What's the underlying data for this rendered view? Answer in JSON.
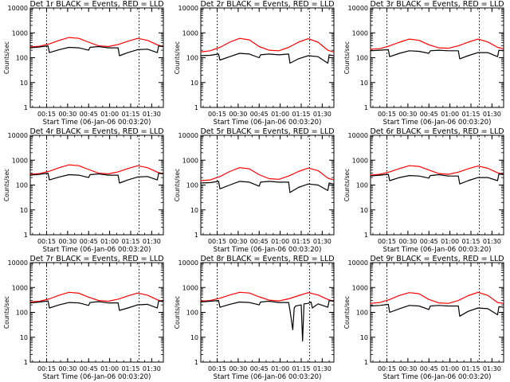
{
  "figure": {
    "background": "#ffffff",
    "events_color": "#000000",
    "lld_color": "#ff0000"
  },
  "chart_data": [
    {
      "type": "line",
      "title": "Det 1r BLACK = Events, RED = LLD",
      "xlabel": "Start Time (06-Jan-06 00:03:20)",
      "ylabel": "Counts/sec",
      "x_range": [
        "00:03:20",
        "01:38:20"
      ],
      "x_ticks": [
        "00:15",
        "00:30",
        "00:45",
        "01:00",
        "01:15",
        "01:30"
      ],
      "ylim": [
        1,
        10000
      ],
      "yscale": "log",
      "y_ticks": [
        "1",
        "10",
        "100",
        "1000",
        "10000"
      ],
      "vlines_dotted": [
        "00:15",
        "01:21"
      ],
      "series": [
        {
          "color": "red",
          "x": [
            "00:03",
            "00:10",
            "00:17",
            "00:24",
            "00:31",
            "00:38",
            "00:45",
            "00:52",
            "00:59",
            "01:06",
            "01:13",
            "01:20",
            "01:27",
            "01:34",
            "01:38"
          ],
          "y": [
            270,
            290,
            360,
            500,
            650,
            600,
            420,
            300,
            280,
            340,
            460,
            600,
            500,
            330,
            280
          ]
        },
        {
          "color": "black",
          "x": [
            "00:03",
            "00:10",
            "00:16",
            "00:17",
            "00:24",
            "00:31",
            "00:38",
            "00:45",
            "00:46",
            "00:52",
            "00:59",
            "01:06",
            "01:07",
            "01:13",
            "01:20",
            "01:27",
            "01:34",
            "01:35",
            "01:38"
          ],
          "y": [
            250,
            270,
            300,
            160,
            210,
            260,
            250,
            200,
            260,
            280,
            250,
            250,
            120,
            160,
            210,
            220,
            160,
            300,
            280
          ]
        }
      ]
    },
    {
      "type": "line",
      "title": "Det 2r BLACK = Events, RED = LLD",
      "xlabel": "Start Time (06-Jan-06 00:03:20)",
      "ylabel": "Counts/sec",
      "x_range": [
        "00:03:20",
        "01:38:20"
      ],
      "x_ticks": [
        "00:15",
        "00:30",
        "00:45",
        "01:00",
        "01:15",
        "01:30"
      ],
      "ylim": [
        1,
        10000
      ],
      "yscale": "log",
      "y_ticks": [
        "1",
        "10",
        "100",
        "1000",
        "10000"
      ],
      "vlines_dotted": [
        "00:15",
        "01:21"
      ],
      "series": [
        {
          "color": "red",
          "x": [
            "00:03",
            "00:10",
            "00:17",
            "00:24",
            "00:31",
            "00:38",
            "00:45",
            "00:52",
            "00:59",
            "01:06",
            "01:13",
            "01:20",
            "01:27",
            "01:34",
            "01:38"
          ],
          "y": [
            170,
            190,
            260,
            420,
            600,
            520,
            280,
            200,
            190,
            260,
            420,
            580,
            420,
            200,
            170
          ]
        },
        {
          "color": "black",
          "x": [
            "00:03",
            "00:10",
            "00:16",
            "00:17",
            "00:24",
            "00:31",
            "00:38",
            "00:45",
            "00:46",
            "00:52",
            "00:59",
            "01:06",
            "01:07",
            "01:13",
            "01:20",
            "01:27",
            "01:34",
            "01:35",
            "01:38"
          ],
          "y": [
            120,
            125,
            140,
            80,
            110,
            150,
            140,
            100,
            130,
            140,
            130,
            140,
            60,
            90,
            120,
            110,
            60,
            130,
            120
          ]
        }
      ]
    },
    {
      "type": "line",
      "title": "Det 3r BLACK = Events, RED = LLD",
      "xlabel": "Start Time (06-Jan-06 00:03:20)",
      "ylabel": "Counts/sec",
      "x_range": [
        "00:03:20",
        "01:38:20"
      ],
      "x_ticks": [
        "00:15",
        "00:30",
        "00:45",
        "01:00",
        "01:15",
        "01:30"
      ],
      "ylim": [
        1,
        10000
      ],
      "yscale": "log",
      "y_ticks": [
        "1",
        "10",
        "100",
        "1000",
        "10000"
      ],
      "vlines_dotted": [
        "00:15",
        "01:21"
      ],
      "series": [
        {
          "color": "red",
          "x": [
            "00:03",
            "00:10",
            "00:17",
            "00:24",
            "00:31",
            "00:38",
            "00:45",
            "00:52",
            "00:59",
            "01:06",
            "01:13",
            "01:20",
            "01:27",
            "01:34",
            "01:38"
          ],
          "y": [
            220,
            230,
            300,
            420,
            560,
            500,
            330,
            250,
            240,
            300,
            420,
            560,
            430,
            260,
            230
          ]
        },
        {
          "color": "black",
          "x": [
            "00:03",
            "00:10",
            "00:16",
            "00:17",
            "00:24",
            "00:31",
            "00:38",
            "00:45",
            "00:46",
            "00:52",
            "00:59",
            "01:06",
            "01:07",
            "01:13",
            "01:20",
            "01:27",
            "01:34",
            "01:35",
            "01:38"
          ],
          "y": [
            190,
            200,
            210,
            110,
            150,
            190,
            180,
            150,
            190,
            200,
            190,
            190,
            90,
            120,
            160,
            160,
            110,
            200,
            190
          ]
        }
      ]
    },
    {
      "type": "line",
      "title": "Det 4r BLACK = Events, RED = LLD",
      "xlabel": "Start Time (06-Jan-06 00:03:20)",
      "ylabel": "Counts/sec",
      "x_range": [
        "00:03:20",
        "01:38:20"
      ],
      "x_ticks": [
        "00:15",
        "00:30",
        "00:45",
        "01:00",
        "01:15",
        "01:30"
      ],
      "ylim": [
        1,
        10000
      ],
      "yscale": "log",
      "y_ticks": [
        "1",
        "10",
        "100",
        "1000",
        "10000"
      ],
      "vlines_dotted": [
        "00:15",
        "01:21"
      ],
      "series": [
        {
          "color": "red",
          "x": [
            "00:03",
            "00:10",
            "00:17",
            "00:24",
            "00:31",
            "00:38",
            "00:45",
            "00:52",
            "00:59",
            "01:06",
            "01:13",
            "01:20",
            "01:27",
            "01:34",
            "01:38"
          ],
          "y": [
            270,
            290,
            360,
            500,
            650,
            600,
            420,
            300,
            280,
            340,
            460,
            600,
            500,
            330,
            280
          ]
        },
        {
          "color": "black",
          "x": [
            "00:03",
            "00:10",
            "00:16",
            "00:17",
            "00:24",
            "00:31",
            "00:38",
            "00:45",
            "00:46",
            "00:52",
            "00:59",
            "01:06",
            "01:07",
            "01:13",
            "01:20",
            "01:27",
            "01:34",
            "01:35",
            "01:38"
          ],
          "y": [
            250,
            270,
            300,
            160,
            210,
            260,
            250,
            200,
            260,
            280,
            250,
            250,
            120,
            160,
            210,
            220,
            160,
            300,
            280
          ]
        }
      ]
    },
    {
      "type": "line",
      "title": "Det 5r BLACK = Events, RED = LLD",
      "xlabel": "Start Time (06-Jan-06 00:03:20)",
      "ylabel": "Counts/sec",
      "x_range": [
        "00:03:20",
        "01:38:20"
      ],
      "x_ticks": [
        "00:15",
        "00:30",
        "00:45",
        "01:00",
        "01:15",
        "01:30"
      ],
      "ylim": [
        1,
        10000
      ],
      "yscale": "log",
      "y_ticks": [
        "1",
        "10",
        "100",
        "1000",
        "10000"
      ],
      "vlines_dotted": [
        "00:15",
        "01:21"
      ],
      "series": [
        {
          "color": "red",
          "x": [
            "00:03",
            "00:10",
            "00:17",
            "00:24",
            "00:31",
            "00:38",
            "00:45",
            "00:52",
            "00:59",
            "01:06",
            "01:13",
            "01:20",
            "01:27",
            "01:34",
            "01:38"
          ],
          "y": [
            150,
            160,
            220,
            350,
            500,
            450,
            260,
            180,
            170,
            230,
            350,
            480,
            380,
            190,
            160
          ]
        },
        {
          "color": "black",
          "x": [
            "00:03",
            "00:10",
            "00:16",
            "00:17",
            "00:24",
            "00:31",
            "00:38",
            "00:45",
            "00:46",
            "00:52",
            "00:59",
            "01:06",
            "01:07",
            "01:13",
            "01:20",
            "01:27",
            "01:34",
            "01:35",
            "01:38"
          ],
          "y": [
            120,
            125,
            140,
            70,
            100,
            140,
            130,
            90,
            130,
            140,
            130,
            130,
            50,
            80,
            110,
            100,
            60,
            120,
            110
          ]
        }
      ]
    },
    {
      "type": "line",
      "title": "Det 6r BLACK = Events, RED = LLD",
      "xlabel": "Start Time (06-Jan-06 00:03:20)",
      "ylabel": "Counts/sec",
      "x_range": [
        "00:03:20",
        "01:38:20"
      ],
      "x_ticks": [
        "00:15",
        "00:30",
        "00:45",
        "01:00",
        "01:15",
        "01:30"
      ],
      "ylim": [
        1,
        10000
      ],
      "yscale": "log",
      "y_ticks": [
        "1",
        "10",
        "100",
        "1000",
        "10000"
      ],
      "vlines_dotted": [
        "00:15",
        "01:21"
      ],
      "series": [
        {
          "color": "red",
          "x": [
            "00:03",
            "00:10",
            "00:17",
            "00:24",
            "00:31",
            "00:38",
            "00:45",
            "00:52",
            "00:59",
            "01:06",
            "01:13",
            "01:20",
            "01:27",
            "01:34",
            "01:38"
          ],
          "y": [
            250,
            270,
            340,
            460,
            600,
            560,
            400,
            290,
            270,
            330,
            450,
            580,
            470,
            310,
            270
          ]
        },
        {
          "color": "black",
          "x": [
            "00:03",
            "00:10",
            "00:16",
            "00:17",
            "00:24",
            "00:31",
            "00:38",
            "00:45",
            "00:46",
            "00:52",
            "00:59",
            "01:06",
            "01:07",
            "01:13",
            "01:20",
            "01:27",
            "01:34",
            "01:35",
            "01:38"
          ],
          "y": [
            230,
            250,
            270,
            150,
            200,
            240,
            230,
            190,
            240,
            260,
            230,
            230,
            110,
            150,
            200,
            200,
            150,
            280,
            260
          ]
        }
      ]
    },
    {
      "type": "line",
      "title": "Det 7r BLACK = Events, RED = LLD",
      "xlabel": "Start Time (06-Jan-06 00:03:20)",
      "ylabel": "Counts/sec",
      "x_range": [
        "00:03:20",
        "01:38:20"
      ],
      "x_ticks": [
        "00:15",
        "00:30",
        "00:45",
        "01:00",
        "01:15",
        "01:30"
      ],
      "ylim": [
        1,
        10000
      ],
      "yscale": "log",
      "y_ticks": [
        "1",
        "10",
        "100",
        "1000",
        "10000"
      ],
      "vlines_dotted": [
        "00:15",
        "01:21"
      ],
      "series": [
        {
          "color": "red",
          "x": [
            "00:03",
            "00:10",
            "00:17",
            "00:24",
            "00:31",
            "00:38",
            "00:45",
            "00:52",
            "00:59",
            "01:06",
            "01:13",
            "01:20",
            "01:27",
            "01:34",
            "01:38"
          ],
          "y": [
            260,
            280,
            350,
            490,
            640,
            590,
            410,
            300,
            280,
            340,
            460,
            600,
            490,
            320,
            270
          ]
        },
        {
          "color": "black",
          "x": [
            "00:03",
            "00:10",
            "00:16",
            "00:17",
            "00:24",
            "00:31",
            "00:38",
            "00:45",
            "00:46",
            "00:52",
            "00:59",
            "01:06",
            "01:07",
            "01:13",
            "01:20",
            "01:27",
            "01:34",
            "01:35",
            "01:38"
          ],
          "y": [
            240,
            260,
            290,
            150,
            200,
            250,
            240,
            190,
            250,
            270,
            240,
            240,
            120,
            150,
            200,
            210,
            150,
            290,
            270
          ]
        }
      ]
    },
    {
      "type": "line",
      "title": "Det 8r BLACK = Events, RED = LLD",
      "xlabel": "Start Time (06-Jan-06 00:03:20)",
      "ylabel": "Counts/sec",
      "x_range": [
        "00:03:20",
        "01:38:20"
      ],
      "x_ticks": [
        "00:15",
        "00:30",
        "00:45",
        "01:00",
        "01:15",
        "01:30"
      ],
      "ylim": [
        1,
        10000
      ],
      "yscale": "log",
      "y_ticks": [
        "1",
        "10",
        "100",
        "1000",
        "10000"
      ],
      "vlines_dotted": [
        "00:15",
        "01:21"
      ],
      "series": [
        {
          "color": "red",
          "x": [
            "00:03",
            "00:10",
            "00:17",
            "00:24",
            "00:31",
            "00:38",
            "00:45",
            "00:52",
            "00:59",
            "01:06",
            "01:13",
            "01:20",
            "01:27",
            "01:34",
            "01:38"
          ],
          "y": [
            280,
            300,
            370,
            500,
            640,
            600,
            420,
            310,
            290,
            350,
            470,
            620,
            500,
            330,
            280
          ]
        },
        {
          "color": "black",
          "x": [
            "00:03",
            "00:10",
            "00:16",
            "00:17",
            "00:24",
            "00:31",
            "00:38",
            "00:45",
            "00:46",
            "00:52",
            "00:59",
            "01:06",
            "01:07",
            "01:09",
            "01:10",
            "01:11",
            "01:13",
            "01:15",
            "01:16",
            "01:17",
            "01:20",
            "01:22",
            "01:23",
            "01:27",
            "01:34",
            "01:35",
            "01:38"
          ],
          "y": [
            260,
            280,
            300,
            160,
            210,
            260,
            250,
            200,
            260,
            280,
            250,
            250,
            120,
            20,
            150,
            180,
            190,
            200,
            7,
            220,
            230,
            260,
            150,
            220,
            160,
            300,
            280
          ]
        }
      ]
    },
    {
      "type": "line",
      "title": "Det 9r BLACK = Events, RED = LLD",
      "xlabel": "Start Time (06-Jan-06 00:03:20)",
      "ylabel": "Counts/sec",
      "x_range": [
        "00:03:20",
        "01:38:20"
      ],
      "x_ticks": [
        "00:15",
        "00:30",
        "00:45",
        "01:00",
        "01:15",
        "01:30"
      ],
      "ylim": [
        1,
        10000
      ],
      "yscale": "log",
      "y_ticks": [
        "1",
        "10",
        "100",
        "1000",
        "10000"
      ],
      "vlines_dotted": [
        "00:15",
        "01:21"
      ],
      "series": [
        {
          "color": "red",
          "x": [
            "00:03",
            "00:10",
            "00:17",
            "00:24",
            "00:31",
            "00:38",
            "00:45",
            "00:52",
            "00:59",
            "01:06",
            "01:13",
            "01:20",
            "01:27",
            "01:34",
            "01:38"
          ],
          "y": [
            230,
            250,
            330,
            480,
            620,
            560,
            330,
            240,
            230,
            300,
            470,
            640,
            480,
            250,
            230
          ]
        },
        {
          "color": "black",
          "x": [
            "00:03",
            "00:10",
            "00:16",
            "00:17",
            "00:24",
            "00:31",
            "00:38",
            "00:45",
            "00:46",
            "00:52",
            "00:59",
            "01:06",
            "01:07",
            "01:13",
            "01:20",
            "01:27",
            "01:34",
            "01:35",
            "01:38"
          ],
          "y": [
            180,
            190,
            210,
            100,
            140,
            190,
            180,
            130,
            180,
            190,
            180,
            180,
            70,
            110,
            150,
            140,
            80,
            170,
            160
          ]
        }
      ]
    }
  ]
}
